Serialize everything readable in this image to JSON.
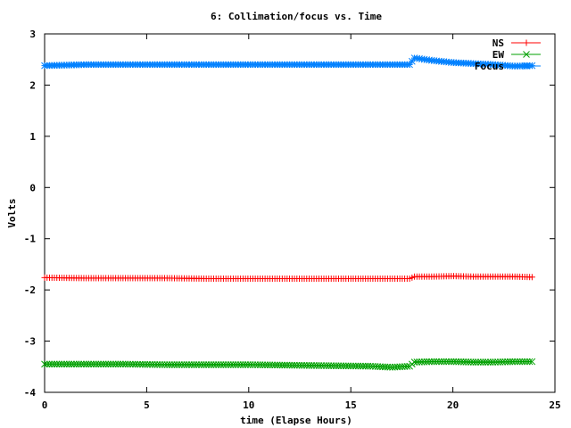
{
  "chart_data": {
    "type": "line",
    "title": "6: Collimation/focus vs. Time",
    "xlabel": "time (Elapse Hours)",
    "ylabel": "Volts",
    "xlim": [
      0,
      25
    ],
    "ylim": [
      -4,
      3
    ],
    "xticks": [
      0,
      5,
      10,
      15,
      20,
      25
    ],
    "yticks": [
      -4,
      -3,
      -2,
      -1,
      0,
      1,
      2,
      3
    ],
    "grid": false,
    "legend_position": "top-right",
    "series": [
      {
        "name": "NS",
        "color": "#ff0000",
        "marker": "plus",
        "x": [
          0,
          2,
          4,
          6,
          8,
          10,
          12,
          14,
          16,
          17.9,
          18.1,
          19,
          20,
          21,
          22,
          23,
          23.9
        ],
        "y": [
          -1.76,
          -1.77,
          -1.77,
          -1.77,
          -1.78,
          -1.78,
          -1.78,
          -1.78,
          -1.78,
          -1.78,
          -1.74,
          -1.74,
          -1.73,
          -1.74,
          -1.74,
          -1.74,
          -1.75
        ]
      },
      {
        "name": "EW",
        "color": "#00a000",
        "marker": "cross",
        "x": [
          0,
          2,
          4,
          6,
          8,
          10,
          12,
          14,
          16,
          17,
          17.9,
          18.1,
          19,
          20,
          21,
          22,
          23,
          23.9
        ],
        "y": [
          -3.45,
          -3.45,
          -3.45,
          -3.46,
          -3.46,
          -3.46,
          -3.47,
          -3.48,
          -3.49,
          -3.51,
          -3.49,
          -3.41,
          -3.4,
          -3.4,
          -3.41,
          -3.41,
          -3.4,
          -3.4
        ]
      },
      {
        "name": "Focus",
        "color": "#0080ff",
        "marker": "star",
        "x": [
          0,
          2,
          4,
          6,
          8,
          10,
          12,
          14,
          16,
          17.9,
          18.1,
          19,
          20,
          21,
          22,
          23,
          23.9
        ],
        "y": [
          2.38,
          2.4,
          2.4,
          2.4,
          2.4,
          2.4,
          2.4,
          2.4,
          2.4,
          2.4,
          2.53,
          2.48,
          2.44,
          2.42,
          2.4,
          2.37,
          2.38
        ]
      }
    ]
  }
}
